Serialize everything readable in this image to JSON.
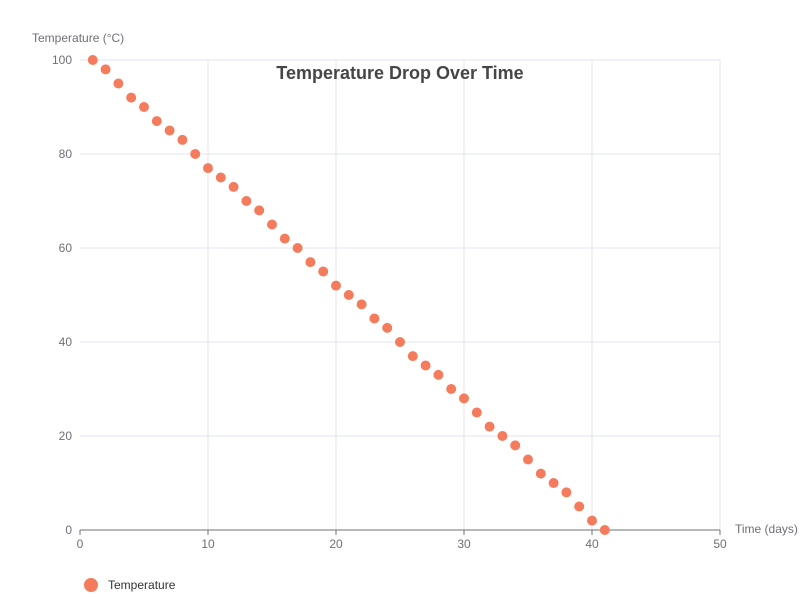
{
  "chart_data": {
    "type": "scatter",
    "title": "Temperature Drop Over Time",
    "xlabel": "Time (days)",
    "ylabel": "Temperature (°C)",
    "xlim": [
      0,
      50
    ],
    "ylim": [
      0,
      100
    ],
    "xticks": [
      "0",
      "10",
      "20",
      "30",
      "40",
      "50"
    ],
    "yticks": [
      "0",
      "20",
      "40",
      "60",
      "80",
      "100"
    ],
    "grid": true,
    "legend_position": "bottom-left",
    "series": [
      {
        "name": "Temperature",
        "color": "#f47c5c",
        "x": [
          1,
          2,
          3,
          4,
          5,
          6,
          7,
          8,
          9,
          10,
          11,
          12,
          13,
          14,
          15,
          16,
          17,
          18,
          19,
          20,
          21,
          22,
          23,
          24,
          25,
          26,
          27,
          28,
          29,
          30,
          31,
          32,
          33,
          34,
          35,
          36,
          37,
          38,
          39,
          40,
          41
        ],
        "y": [
          100,
          98,
          95,
          92,
          90,
          87,
          85,
          83,
          80,
          77,
          75,
          73,
          70,
          68,
          65,
          62,
          60,
          57,
          55,
          52,
          50,
          48,
          45,
          43,
          40,
          37,
          35,
          33,
          30,
          28,
          25,
          22,
          20,
          18,
          15,
          12,
          10,
          8,
          5,
          2,
          0
        ]
      }
    ]
  }
}
